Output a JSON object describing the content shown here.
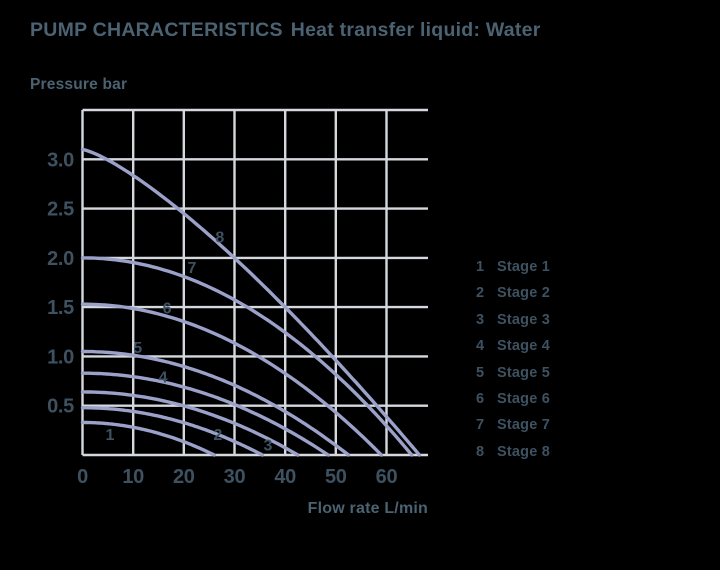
{
  "colors": {
    "bg": "#000000",
    "text_primary": "#4b6272",
    "text_axis": "#3e5160",
    "curve": "#9ba1c9",
    "grid": "#d5d9de"
  },
  "header": {
    "title": "PUMP CHARACTERISTICS",
    "subtitle": "Heat transfer liquid: Water"
  },
  "axis_titles": {
    "y": "Pressure bar",
    "x": "Flow rate L/min"
  },
  "legend": {
    "items": [
      {
        "num": "1",
        "label": "Stage 1"
      },
      {
        "num": "2",
        "label": "Stage 2"
      },
      {
        "num": "3",
        "label": "Stage 3"
      },
      {
        "num": "4",
        "label": "Stage 4"
      },
      {
        "num": "5",
        "label": "Stage 5"
      },
      {
        "num": "6",
        "label": "Stage 6"
      },
      {
        "num": "7",
        "label": "Stage 7"
      },
      {
        "num": "8",
        "label": "Stage 8"
      }
    ]
  },
  "chart_data": {
    "type": "line",
    "title": "PUMP CHARACTERISTICS Heat transfer liquid: Water",
    "xlabel": "Flow rate L/min",
    "ylabel": "Pressure bar",
    "xlim": [
      0,
      68.2
    ],
    "ylim": [
      0,
      3.5
    ],
    "grid": true,
    "legend_position": "right",
    "x_ticks": [
      0,
      10,
      20,
      30,
      40,
      50,
      60
    ],
    "x_tick_labels": [
      "0",
      "10",
      "20",
      "30",
      "40",
      "50",
      "60"
    ],
    "y_ticks": [
      0.5,
      1.0,
      1.5,
      2.0,
      2.5,
      3.0
    ],
    "y_tick_labels": [
      "0.5",
      "1.0",
      "1.5",
      "2.0",
      "2.5",
      "3.0"
    ],
    "x_gridlines": [
      0,
      10,
      20,
      30,
      40,
      50,
      60
    ],
    "y_gridlines": [
      0,
      0.5,
      1.0,
      1.5,
      2.0,
      2.5,
      3.0,
      3.5
    ],
    "series": [
      {
        "name": "Stage 1",
        "p0": 0.33,
        "qmax": 26,
        "exp": 2,
        "curve_label": {
          "text": "1",
          "q": 5.4,
          "p": 0.21
        },
        "points": [
          [
            0,
            0.33
          ],
          [
            5,
            0.32
          ],
          [
            10,
            0.28
          ],
          [
            15,
            0.22
          ],
          [
            20,
            0.13
          ],
          [
            23,
            0.07
          ],
          [
            26,
            0
          ]
        ]
      },
      {
        "name": "Stage 2",
        "p0": 0.48,
        "qmax": 35.5,
        "exp": 2,
        "curve_label": {
          "text": "2",
          "q": 26.7,
          "p": 0.21
        },
        "points": [
          [
            0,
            0.48
          ],
          [
            10,
            0.44
          ],
          [
            15,
            0.39
          ],
          [
            20,
            0.33
          ],
          [
            25,
            0.24
          ],
          [
            30,
            0.14
          ],
          [
            35.5,
            0
          ]
        ]
      },
      {
        "name": "Stage 3",
        "p0": 0.64,
        "qmax": 42.5,
        "exp": 2,
        "curve_label": {
          "text": "3",
          "q": 36.6,
          "p": 0.1
        },
        "points": [
          [
            0,
            0.64
          ],
          [
            10,
            0.6
          ],
          [
            20,
            0.5
          ],
          [
            30,
            0.32
          ],
          [
            35,
            0.21
          ],
          [
            40,
            0.07
          ],
          [
            42.5,
            0
          ]
        ]
      },
      {
        "name": "Stage 4",
        "p0": 0.83,
        "qmax": 48.5,
        "exp": 2,
        "curve_label": {
          "text": "4",
          "q": 15.9,
          "p": 0.79
        },
        "points": [
          [
            0,
            0.83
          ],
          [
            10,
            0.79
          ],
          [
            20,
            0.69
          ],
          [
            30,
            0.51
          ],
          [
            40,
            0.27
          ],
          [
            45,
            0.11
          ],
          [
            48.5,
            0
          ]
        ]
      },
      {
        "name": "Stage 5",
        "p0": 1.05,
        "qmax": 52.5,
        "exp": 2,
        "curve_label": {
          "text": "5",
          "q": 10.9,
          "p": 1.09
        },
        "points": [
          [
            0,
            1.05
          ],
          [
            10,
            1.01
          ],
          [
            20,
            0.9
          ],
          [
            30,
            0.71
          ],
          [
            40,
            0.44
          ],
          [
            47,
            0.21
          ],
          [
            52.5,
            0
          ]
        ]
      },
      {
        "name": "Stage 6",
        "p0": 1.53,
        "qmax": 59,
        "exp": 2,
        "curve_label": {
          "text": "6",
          "q": 16.7,
          "p": 1.49
        },
        "points": [
          [
            0,
            1.53
          ],
          [
            10,
            1.49
          ],
          [
            20,
            1.35
          ],
          [
            30,
            1.13
          ],
          [
            40,
            0.83
          ],
          [
            50,
            0.43
          ],
          [
            55,
            0.2
          ],
          [
            59,
            0
          ]
        ]
      },
      {
        "name": "Stage 7",
        "p0": 2.0,
        "qmax": 65,
        "exp": 2,
        "curve_label": {
          "text": "7",
          "q": 21.6,
          "p": 1.9
        },
        "points": [
          [
            0,
            2.0
          ],
          [
            10,
            1.95
          ],
          [
            20,
            1.81
          ],
          [
            30,
            1.57
          ],
          [
            40,
            1.24
          ],
          [
            50,
            0.82
          ],
          [
            58,
            0.41
          ],
          [
            65,
            0
          ]
        ]
      },
      {
        "name": "Stage 8",
        "p0": 3.1,
        "qmax": 66.5,
        "exp": 1.3,
        "curve_label": {
          "text": "8",
          "q": 27.1,
          "p": 2.21
        },
        "points": [
          [
            0,
            3.1
          ],
          [
            10,
            2.84
          ],
          [
            20,
            2.47
          ],
          [
            30,
            2.0
          ],
          [
            40,
            1.5
          ],
          [
            50,
            0.97
          ],
          [
            60,
            0.39
          ],
          [
            66.5,
            0
          ]
        ]
      }
    ]
  }
}
